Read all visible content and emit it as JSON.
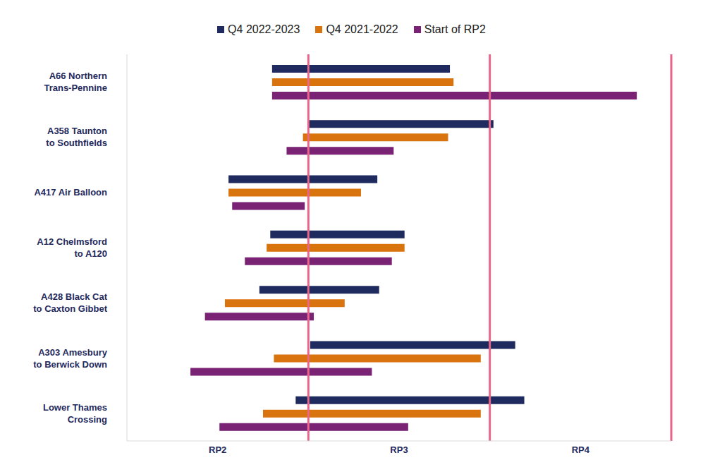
{
  "chart_data": {
    "type": "bar",
    "orientation": "horizontal",
    "legend": "top",
    "categories": [
      "A66 Northern Trans-Pennine",
      "A358 Taunton to Southfields",
      "A417 Air Balloon",
      "A12 Chelmsford to A120",
      "A428 Black Cat to Caxton Gibbet",
      "A303 Amesbury to Berwick Down",
      "Lower Thames Crossing"
    ],
    "series": [
      {
        "name": "Q4 2022-2023",
        "color": "#1f2a5e",
        "values": [
          [
            0.8,
            1.78
          ],
          [
            1.0,
            2.02
          ],
          [
            0.56,
            1.38
          ],
          [
            0.79,
            1.53
          ],
          [
            0.73,
            1.39
          ],
          [
            1.01,
            2.14
          ],
          [
            0.93,
            2.19
          ]
        ]
      },
      {
        "name": "Q4 2021-2022",
        "color": "#d9730d",
        "values": [
          [
            0.8,
            1.8
          ],
          [
            0.97,
            1.77
          ],
          [
            0.56,
            1.29
          ],
          [
            0.77,
            1.53
          ],
          [
            0.54,
            1.2
          ],
          [
            0.81,
            1.95
          ],
          [
            0.75,
            1.95
          ]
        ]
      },
      {
        "name": "Start of RP2",
        "color": "#7a2375",
        "values": [
          [
            0.8,
            2.81
          ],
          [
            0.88,
            1.47
          ],
          [
            0.58,
            0.98
          ],
          [
            0.65,
            1.46
          ],
          [
            0.43,
            1.03
          ],
          [
            0.35,
            1.35
          ],
          [
            0.51,
            1.55
          ]
        ]
      }
    ],
    "xlim": [
      0,
      3
    ],
    "xticks": [
      {
        "value": 0.5,
        "label": "RP2"
      },
      {
        "value": 1.5,
        "label": "RP3"
      },
      {
        "value": 2.5,
        "label": "RP4"
      }
    ],
    "period_boundaries": [
      1,
      2,
      3
    ]
  }
}
